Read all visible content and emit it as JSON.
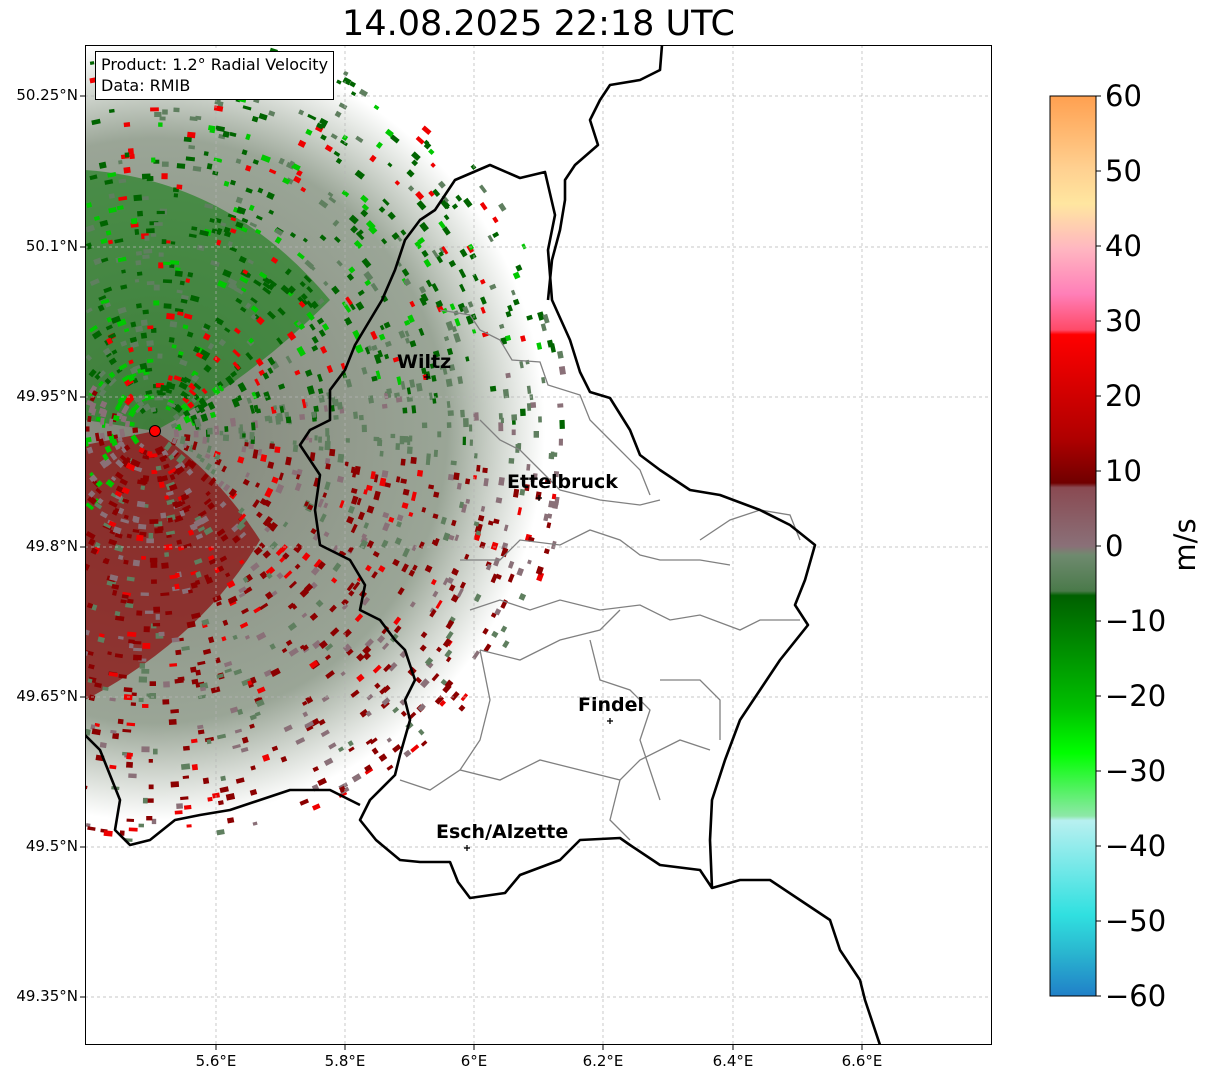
{
  "title": "14.08.2025 22:18 UTC",
  "info_box": {
    "product_line": "Product: 1.2° Radial Velocity",
    "data_line": "Data: RMIB"
  },
  "axes": {
    "lon_ticks": [
      "5.6°E",
      "5.8°E",
      "6°E",
      "6.2°E",
      "6.4°E",
      "6.6°E"
    ],
    "lat_ticks": [
      "50.25°N",
      "50.1°N",
      "49.95°N",
      "49.8°N",
      "49.65°N",
      "49.5°N",
      "49.35°N"
    ]
  },
  "cities": [
    {
      "name": "Wiltz"
    },
    {
      "name": "Ettelbruck"
    },
    {
      "name": "Findel"
    },
    {
      "name": "Esch/Alzette"
    }
  ],
  "colorbar": {
    "unit": "m/s",
    "min": -60,
    "max": 60,
    "tick_labels": [
      "60",
      "50",
      "40",
      "30",
      "20",
      "10",
      "0",
      "−10",
      "−20",
      "−30",
      "−40",
      "−50",
      "−60"
    ]
  },
  "colors": {
    "inbound_strong": "#2a9fd6",
    "inbound_cyan": "#3fd8dc",
    "inbound_green": "#00c800",
    "inbound_dark_green": "#006400",
    "near_zero_green": "#5f7f5f",
    "near_zero_mauve": "#8a7078",
    "outbound_dark_red": "#8b0000",
    "outbound_red": "#ee0000",
    "outbound_pink": "#ff6f91",
    "outbound_orange": "#ffa050",
    "radar_site": "#ff0000",
    "border": "#000000",
    "canton_lines": "#808080",
    "grid": "#b0b0b0"
  }
}
